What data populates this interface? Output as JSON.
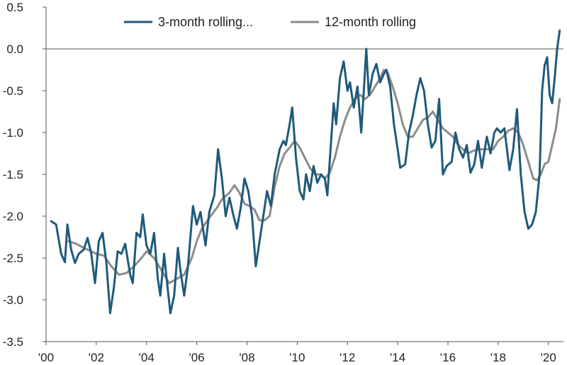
{
  "chart_data": {
    "type": "line",
    "title": "",
    "xlabel": "",
    "ylabel": "",
    "xlim": [
      2000,
      2020.6
    ],
    "ylim": [
      -3.5,
      0.5
    ],
    "x_ticks": [
      {
        "value": 2000,
        "label": "'00"
      },
      {
        "value": 2002,
        "label": "'02"
      },
      {
        "value": 2004,
        "label": "'04"
      },
      {
        "value": 2006,
        "label": "'06"
      },
      {
        "value": 2008,
        "label": "'08"
      },
      {
        "value": 2010,
        "label": "'10"
      },
      {
        "value": 2012,
        "label": "'12"
      },
      {
        "value": 2014,
        "label": "'14"
      },
      {
        "value": 2016,
        "label": "'16"
      },
      {
        "value": 2018,
        "label": "'18"
      },
      {
        "value": 2020,
        "label": "'20"
      }
    ],
    "y_ticks": [
      {
        "value": 0.5,
        "label": "0.5"
      },
      {
        "value": 0.0,
        "label": "0.0"
      },
      {
        "value": -0.5,
        "label": "-0.5"
      },
      {
        "value": -1.0,
        "label": "-1.0"
      },
      {
        "value": -1.5,
        "label": "-1.5"
      },
      {
        "value": -2.0,
        "label": "-2.0"
      },
      {
        "value": -2.5,
        "label": "-2.5"
      },
      {
        "value": -3.0,
        "label": "-3.0"
      },
      {
        "value": -3.5,
        "label": "-3.5"
      }
    ],
    "zero_line": 0,
    "grid": false,
    "legend_position": "top-center",
    "series": [
      {
        "name": "3-month rolling...",
        "color": "#1f5a7a",
        "points": [
          [
            2000.2,
            -2.06
          ],
          [
            2000.4,
            -2.1
          ],
          [
            2000.6,
            -2.45
          ],
          [
            2000.75,
            -2.55
          ],
          [
            2000.85,
            -2.1
          ],
          [
            2001.0,
            -2.4
          ],
          [
            2001.15,
            -2.56
          ],
          [
            2001.3,
            -2.45
          ],
          [
            2001.5,
            -2.4
          ],
          [
            2001.65,
            -2.26
          ],
          [
            2001.8,
            -2.45
          ],
          [
            2001.95,
            -2.8
          ],
          [
            2002.1,
            -2.3
          ],
          [
            2002.25,
            -2.2
          ],
          [
            2002.4,
            -2.55
          ],
          [
            2002.55,
            -3.16
          ],
          [
            2002.7,
            -2.85
          ],
          [
            2002.85,
            -2.42
          ],
          [
            2003.0,
            -2.45
          ],
          [
            2003.15,
            -2.33
          ],
          [
            2003.35,
            -2.7
          ],
          [
            2003.45,
            -2.8
          ],
          [
            2003.6,
            -2.2
          ],
          [
            2003.75,
            -2.25
          ],
          [
            2003.85,
            -1.98
          ],
          [
            2004.0,
            -2.35
          ],
          [
            2004.15,
            -2.45
          ],
          [
            2004.3,
            -2.2
          ],
          [
            2004.45,
            -2.75
          ],
          [
            2004.55,
            -2.95
          ],
          [
            2004.7,
            -2.45
          ],
          [
            2004.8,
            -2.75
          ],
          [
            2004.95,
            -3.16
          ],
          [
            2005.1,
            -2.95
          ],
          [
            2005.25,
            -2.38
          ],
          [
            2005.35,
            -2.65
          ],
          [
            2005.5,
            -2.95
          ],
          [
            2005.65,
            -2.6
          ],
          [
            2005.85,
            -1.88
          ],
          [
            2006.0,
            -2.1
          ],
          [
            2006.15,
            -1.95
          ],
          [
            2006.35,
            -2.35
          ],
          [
            2006.5,
            -1.95
          ],
          [
            2006.7,
            -1.75
          ],
          [
            2006.85,
            -1.2
          ],
          [
            2007.0,
            -1.55
          ],
          [
            2007.15,
            -2.0
          ],
          [
            2007.3,
            -1.78
          ],
          [
            2007.45,
            -1.98
          ],
          [
            2007.6,
            -2.15
          ],
          [
            2007.75,
            -1.9
          ],
          [
            2007.9,
            -1.55
          ],
          [
            2008.05,
            -1.7
          ],
          [
            2008.2,
            -2.0
          ],
          [
            2008.35,
            -2.6
          ],
          [
            2008.5,
            -2.3
          ],
          [
            2008.65,
            -2.0
          ],
          [
            2008.8,
            -1.7
          ],
          [
            2008.95,
            -1.88
          ],
          [
            2009.1,
            -1.5
          ],
          [
            2009.3,
            -1.2
          ],
          [
            2009.45,
            -1.1
          ],
          [
            2009.55,
            -1.15
          ],
          [
            2009.7,
            -0.9
          ],
          [
            2009.8,
            -0.7
          ],
          [
            2009.95,
            -1.3
          ],
          [
            2010.1,
            -1.7
          ],
          [
            2010.25,
            -1.8
          ],
          [
            2010.35,
            -1.5
          ],
          [
            2010.5,
            -1.7
          ],
          [
            2010.65,
            -1.4
          ],
          [
            2010.8,
            -1.6
          ],
          [
            2010.95,
            -1.5
          ],
          [
            2011.1,
            -1.55
          ],
          [
            2011.2,
            -1.75
          ],
          [
            2011.35,
            -1.1
          ],
          [
            2011.45,
            -0.65
          ],
          [
            2011.55,
            -0.9
          ],
          [
            2011.7,
            -0.35
          ],
          [
            2011.85,
            -0.15
          ],
          [
            2012.0,
            -0.5
          ],
          [
            2012.1,
            -0.4
          ],
          [
            2012.25,
            -0.7
          ],
          [
            2012.4,
            -0.45
          ],
          [
            2012.55,
            -1.0
          ],
          [
            2012.65,
            -0.5
          ],
          [
            2012.75,
            0.0
          ],
          [
            2012.85,
            -0.55
          ],
          [
            2013.0,
            -0.3
          ],
          [
            2013.15,
            -0.18
          ],
          [
            2013.3,
            -0.4
          ],
          [
            2013.45,
            -0.3
          ],
          [
            2013.55,
            -0.25
          ],
          [
            2013.7,
            -0.45
          ],
          [
            2013.85,
            -0.9
          ],
          [
            2014.0,
            -1.2
          ],
          [
            2014.1,
            -1.42
          ],
          [
            2014.3,
            -1.38
          ],
          [
            2014.45,
            -1.0
          ],
          [
            2014.6,
            -0.8
          ],
          [
            2014.75,
            -0.55
          ],
          [
            2014.9,
            -0.35
          ],
          [
            2015.05,
            -0.5
          ],
          [
            2015.2,
            -0.9
          ],
          [
            2015.35,
            -1.18
          ],
          [
            2015.5,
            -1.1
          ],
          [
            2015.65,
            -0.6
          ],
          [
            2015.8,
            -1.5
          ],
          [
            2015.95,
            -1.4
          ],
          [
            2016.15,
            -1.35
          ],
          [
            2016.3,
            -1.0
          ],
          [
            2016.45,
            -1.2
          ],
          [
            2016.6,
            -1.3
          ],
          [
            2016.75,
            -1.15
          ],
          [
            2016.9,
            -1.48
          ],
          [
            2017.05,
            -1.38
          ],
          [
            2017.2,
            -1.1
          ],
          [
            2017.35,
            -1.42
          ],
          [
            2017.55,
            -1.05
          ],
          [
            2017.7,
            -1.25
          ],
          [
            2017.85,
            -1.0
          ],
          [
            2017.95,
            -0.95
          ],
          [
            2018.1,
            -1.0
          ],
          [
            2018.25,
            -0.95
          ],
          [
            2018.45,
            -1.45
          ],
          [
            2018.6,
            -1.2
          ],
          [
            2018.75,
            -0.72
          ],
          [
            2018.9,
            -1.5
          ],
          [
            2019.05,
            -1.95
          ],
          [
            2019.2,
            -2.15
          ],
          [
            2019.35,
            -2.1
          ],
          [
            2019.5,
            -1.95
          ],
          [
            2019.65,
            -1.5
          ],
          [
            2019.75,
            -0.5
          ],
          [
            2019.85,
            -0.2
          ],
          [
            2019.95,
            -0.1
          ],
          [
            2020.05,
            -0.55
          ],
          [
            2020.15,
            -0.65
          ],
          [
            2020.25,
            -0.35
          ],
          [
            2020.35,
            0.0
          ],
          [
            2020.45,
            0.22
          ]
        ]
      },
      {
        "name": "12-month rolling",
        "color": "#8c8c8c",
        "points": [
          [
            2000.9,
            -2.3
          ],
          [
            2001.2,
            -2.33
          ],
          [
            2001.5,
            -2.38
          ],
          [
            2001.8,
            -2.42
          ],
          [
            2002.0,
            -2.45
          ],
          [
            2002.3,
            -2.47
          ],
          [
            2002.6,
            -2.6
          ],
          [
            2002.9,
            -2.7
          ],
          [
            2003.2,
            -2.68
          ],
          [
            2003.5,
            -2.6
          ],
          [
            2003.8,
            -2.5
          ],
          [
            2004.0,
            -2.42
          ],
          [
            2004.3,
            -2.5
          ],
          [
            2004.6,
            -2.65
          ],
          [
            2004.9,
            -2.8
          ],
          [
            2005.2,
            -2.75
          ],
          [
            2005.5,
            -2.7
          ],
          [
            2005.8,
            -2.5
          ],
          [
            2006.0,
            -2.3
          ],
          [
            2006.2,
            -2.15
          ],
          [
            2006.5,
            -2.02
          ],
          [
            2006.8,
            -1.9
          ],
          [
            2007.0,
            -1.8
          ],
          [
            2007.3,
            -1.72
          ],
          [
            2007.5,
            -1.63
          ],
          [
            2007.7,
            -1.72
          ],
          [
            2007.9,
            -1.85
          ],
          [
            2008.1,
            -1.88
          ],
          [
            2008.3,
            -1.92
          ],
          [
            2008.5,
            -2.05
          ],
          [
            2008.7,
            -2.05
          ],
          [
            2008.9,
            -2.0
          ],
          [
            2009.1,
            -1.65
          ],
          [
            2009.3,
            -1.4
          ],
          [
            2009.5,
            -1.25
          ],
          [
            2009.7,
            -1.18
          ],
          [
            2009.9,
            -1.1
          ],
          [
            2010.1,
            -1.18
          ],
          [
            2010.3,
            -1.3
          ],
          [
            2010.5,
            -1.42
          ],
          [
            2010.7,
            -1.5
          ],
          [
            2010.9,
            -1.5
          ],
          [
            2011.1,
            -1.55
          ],
          [
            2011.3,
            -1.48
          ],
          [
            2011.5,
            -1.3
          ],
          [
            2011.7,
            -1.05
          ],
          [
            2011.9,
            -0.85
          ],
          [
            2012.1,
            -0.7
          ],
          [
            2012.3,
            -0.6
          ],
          [
            2012.5,
            -0.55
          ],
          [
            2012.7,
            -0.6
          ],
          [
            2012.9,
            -0.55
          ],
          [
            2013.1,
            -0.45
          ],
          [
            2013.3,
            -0.35
          ],
          [
            2013.45,
            -0.25
          ],
          [
            2013.6,
            -0.28
          ],
          [
            2013.8,
            -0.45
          ],
          [
            2014.0,
            -0.65
          ],
          [
            2014.2,
            -0.9
          ],
          [
            2014.4,
            -1.05
          ],
          [
            2014.6,
            -1.05
          ],
          [
            2014.8,
            -0.95
          ],
          [
            2015.0,
            -0.85
          ],
          [
            2015.2,
            -0.82
          ],
          [
            2015.4,
            -0.75
          ],
          [
            2015.6,
            -0.85
          ],
          [
            2015.8,
            -0.95
          ],
          [
            2016.0,
            -1.0
          ],
          [
            2016.2,
            -1.05
          ],
          [
            2016.4,
            -1.15
          ],
          [
            2016.6,
            -1.2
          ],
          [
            2016.8,
            -1.25
          ],
          [
            2017.0,
            -1.22
          ],
          [
            2017.2,
            -1.2
          ],
          [
            2017.4,
            -1.2
          ],
          [
            2017.6,
            -1.2
          ],
          [
            2017.8,
            -1.2
          ],
          [
            2018.0,
            -1.1
          ],
          [
            2018.2,
            -1.05
          ],
          [
            2018.4,
            -0.98
          ],
          [
            2018.6,
            -0.95
          ],
          [
            2018.8,
            -1.0
          ],
          [
            2019.0,
            -1.15
          ],
          [
            2019.2,
            -1.35
          ],
          [
            2019.4,
            -1.55
          ],
          [
            2019.55,
            -1.57
          ],
          [
            2019.7,
            -1.5
          ],
          [
            2019.85,
            -1.38
          ],
          [
            2020.0,
            -1.35
          ],
          [
            2020.15,
            -1.15
          ],
          [
            2020.3,
            -0.95
          ],
          [
            2020.45,
            -0.6
          ]
        ]
      }
    ]
  }
}
